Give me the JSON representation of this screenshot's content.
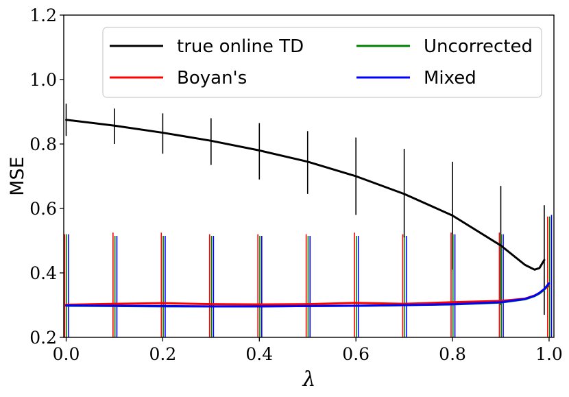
{
  "chart_data": {
    "type": "line",
    "xlabel": "λ",
    "ylabel": "MSE",
    "xlim": [
      -0.005,
      1.01
    ],
    "ylim": [
      0.2,
      1.2
    ],
    "xticks": [
      0.0,
      0.2,
      0.4,
      0.6,
      0.8,
      1.0
    ],
    "xtick_labels": [
      "0.0",
      "0.2",
      "0.4",
      "0.6",
      "0.8",
      "1.0"
    ],
    "yticks": [
      0.2,
      0.4,
      0.6,
      0.8,
      1.0,
      1.2
    ],
    "ytick_labels": [
      "0.2",
      "0.4",
      "0.6",
      "0.8",
      "1.0",
      "1.2"
    ],
    "grid": false,
    "legend_placement": "top-center, two columns",
    "series": [
      {
        "name": "true online TD",
        "color": "#000000",
        "x": [
          0.0,
          0.1,
          0.2,
          0.3,
          0.4,
          0.5,
          0.6,
          0.7,
          0.8,
          0.9,
          0.95,
          0.97,
          0.98,
          0.99
        ],
        "y": [
          0.875,
          0.857,
          0.835,
          0.81,
          0.78,
          0.745,
          0.7,
          0.645,
          0.578,
          0.485,
          0.425,
          0.41,
          0.415,
          0.44
        ],
        "err_x": [
          0.0,
          0.1,
          0.2,
          0.3,
          0.4,
          0.5,
          0.6,
          0.7,
          0.8,
          0.9,
          0.99
        ],
        "err_low": [
          0.825,
          0.8,
          0.77,
          0.735,
          0.69,
          0.645,
          0.58,
          0.51,
          0.41,
          0.3,
          0.27
        ],
        "err_high": [
          0.925,
          0.91,
          0.895,
          0.88,
          0.865,
          0.84,
          0.82,
          0.785,
          0.745,
          0.67,
          0.61
        ]
      },
      {
        "name": "Boyan's",
        "color": "#ff0000",
        "x": [
          0.0,
          0.1,
          0.2,
          0.3,
          0.4,
          0.5,
          0.6,
          0.7,
          0.8,
          0.9,
          0.95,
          0.97,
          0.98,
          0.99,
          1.0
        ],
        "y": [
          0.301,
          0.304,
          0.306,
          0.303,
          0.302,
          0.303,
          0.307,
          0.304,
          0.309,
          0.313,
          0.32,
          0.33,
          0.338,
          0.35,
          0.36
        ],
        "err_x": [
          -0.003,
          0.097,
          0.197,
          0.297,
          0.397,
          0.497,
          0.597,
          0.697,
          0.797,
          0.897,
          0.997
        ],
        "err_low": [
          0.2,
          0.2,
          0.2,
          0.2,
          0.2,
          0.2,
          0.2,
          0.2,
          0.2,
          0.2,
          0.2
        ],
        "err_high": [
          0.52,
          0.525,
          0.525,
          0.52,
          0.52,
          0.52,
          0.525,
          0.52,
          0.525,
          0.525,
          0.575
        ]
      },
      {
        "name": "Uncorrected",
        "color": "#008000",
        "x": [
          0.0,
          0.1,
          0.2,
          0.3,
          0.4,
          0.5,
          0.6,
          0.7,
          0.8,
          0.9,
          0.95,
          0.97,
          0.98,
          0.99,
          1.0
        ],
        "y": [
          0.298,
          0.297,
          0.296,
          0.296,
          0.296,
          0.297,
          0.298,
          0.3,
          0.302,
          0.308,
          0.318,
          0.328,
          0.336,
          0.348,
          0.365
        ],
        "err_x": [
          0.001,
          0.101,
          0.201,
          0.301,
          0.401,
          0.501,
          0.601,
          0.701,
          0.801,
          0.901,
          1.001
        ],
        "err_low": [
          0.2,
          0.2,
          0.2,
          0.2,
          0.2,
          0.2,
          0.2,
          0.2,
          0.2,
          0.2,
          0.2
        ],
        "err_high": [
          0.52,
          0.515,
          0.515,
          0.515,
          0.515,
          0.515,
          0.515,
          0.515,
          0.52,
          0.52,
          0.575
        ]
      },
      {
        "name": "Mixed",
        "color": "#0000ff",
        "x": [
          0.0,
          0.1,
          0.2,
          0.3,
          0.4,
          0.5,
          0.6,
          0.7,
          0.8,
          0.9,
          0.95,
          0.97,
          0.98,
          0.99,
          1.0
        ],
        "y": [
          0.299,
          0.298,
          0.297,
          0.296,
          0.296,
          0.297,
          0.298,
          0.3,
          0.303,
          0.309,
          0.319,
          0.329,
          0.338,
          0.35,
          0.368
        ],
        "err_x": [
          0.005,
          0.105,
          0.205,
          0.305,
          0.405,
          0.505,
          0.605,
          0.705,
          0.805,
          0.905,
          1.005
        ],
        "err_low": [
          0.2,
          0.2,
          0.2,
          0.2,
          0.2,
          0.2,
          0.2,
          0.2,
          0.2,
          0.2,
          0.2
        ],
        "err_high": [
          0.52,
          0.515,
          0.515,
          0.515,
          0.515,
          0.515,
          0.515,
          0.515,
          0.52,
          0.52,
          0.58
        ]
      }
    ]
  }
}
